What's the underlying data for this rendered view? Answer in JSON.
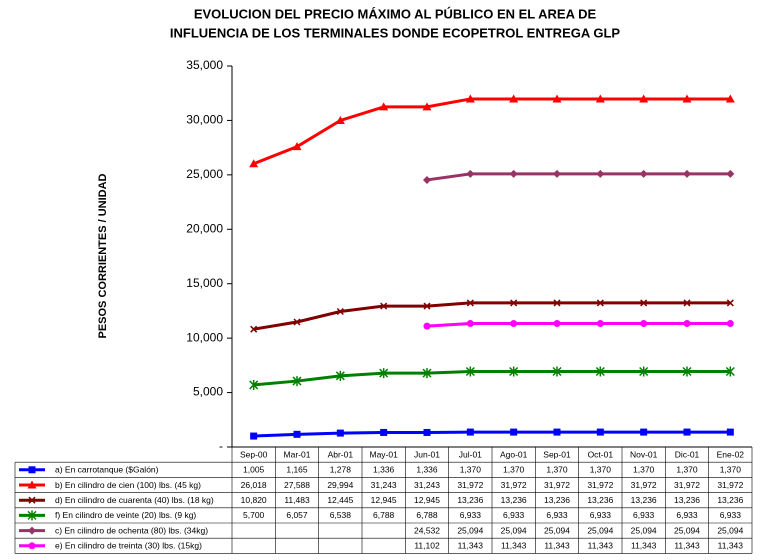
{
  "chart_data": {
    "type": "line",
    "title": [
      "EVOLUCION DEL PRECIO MÁXIMO AL PÚBLICO EN EL AREA DE",
      "INFLUENCIA DE LOS TERMINALES DONDE ECOPETROL ENTREGA GLP"
    ],
    "y_label": "PESOS CORRIENTES / UNIDAD",
    "categories": [
      "Sep-00",
      "Mar-01",
      "Abr-01",
      "May-01",
      "Jun-01",
      "Jul-01",
      "Ago-01",
      "Sep-01",
      "Oct-01",
      "Nov-01",
      "Dic-01",
      "Ene-02"
    ],
    "ylim": [
      0,
      35000
    ],
    "yticks": [
      {
        "value": 0,
        "label": "-"
      },
      {
        "value": 5000,
        "label": "5,000"
      },
      {
        "value": 10000,
        "label": "10,000"
      },
      {
        "value": 15000,
        "label": "15,000"
      },
      {
        "value": 20000,
        "label": "20,000"
      },
      {
        "value": 25000,
        "label": "25,000"
      },
      {
        "value": 30000,
        "label": "30,000"
      },
      {
        "value": 35000,
        "label": "35,000"
      }
    ],
    "grid": false,
    "series": [
      {
        "name": "a) En carrotanque ($Galón)",
        "color": "#0000ff",
        "marker": "square",
        "values": [
          1005,
          1165,
          1278,
          1336,
          1336,
          1370,
          1370,
          1370,
          1370,
          1370,
          1370,
          1370
        ],
        "value_labels": [
          "1,005",
          "1,165",
          "1,278",
          "1,336",
          "1,336",
          "1,370",
          "1,370",
          "1,370",
          "1,370",
          "1,370",
          "1,370",
          "1,370"
        ]
      },
      {
        "name": "b) En cilindro de cien (100) lbs. (45 kg)",
        "color": "#ff0000",
        "marker": "triangle",
        "values": [
          26018,
          27588,
          29994,
          31243,
          31243,
          31972,
          31972,
          31972,
          31972,
          31972,
          31972,
          31972
        ],
        "value_labels": [
          "26,018",
          "27,588",
          "29,994",
          "31,243",
          "31,243",
          "31,972",
          "31,972",
          "31,972",
          "31,972",
          "31,972",
          "31,972",
          "31,972"
        ]
      },
      {
        "name": "d) En cilindro de cuarenta (40) lbs. (18 kg)",
        "color": "#800000",
        "marker": "cross",
        "values": [
          10820,
          11483,
          12445,
          12945,
          12945,
          13236,
          13236,
          13236,
          13236,
          13236,
          13236,
          13236
        ],
        "value_labels": [
          "10,820",
          "11,483",
          "12,445",
          "12,945",
          "12,945",
          "13,236",
          "13,236",
          "13,236",
          "13,236",
          "13,236",
          "13,236",
          "13,236"
        ]
      },
      {
        "name": "f) En cilindro de veinte (20) lbs. (9 kg)",
        "color": "#008000",
        "marker": "star",
        "values": [
          5700,
          6057,
          6538,
          6788,
          6788,
          6933,
          6933,
          6933,
          6933,
          6933,
          6933,
          6933
        ],
        "value_labels": [
          "5,700",
          "6,057",
          "6,538",
          "6,788",
          "6,788",
          "6,933",
          "6,933",
          "6,933",
          "6,933",
          "6,933",
          "6,933",
          "6,933"
        ]
      },
      {
        "name": "c) En cilindro de ochenta (80) lbs. (34kg)",
        "color": "#993366",
        "marker": "diamond",
        "values": [
          null,
          null,
          null,
          null,
          24532,
          25094,
          25094,
          25094,
          25094,
          25094,
          25094,
          25094
        ],
        "value_labels": [
          null,
          null,
          null,
          null,
          "24,532",
          "25,094",
          "25,094",
          "25,094",
          "25,094",
          "25,094",
          "25,094",
          "25,094"
        ]
      },
      {
        "name": "e) En cilindro de treinta (30) lbs. (15kg)",
        "color": "#ff00ff",
        "marker": "circle",
        "values": [
          null,
          null,
          null,
          null,
          11102,
          11343,
          11343,
          11343,
          11343,
          11343,
          11343,
          11343
        ],
        "value_labels": [
          null,
          null,
          null,
          null,
          "11,102",
          "11,343",
          "11,343",
          "11,343",
          "11,343",
          "11,343",
          "11,343",
          "11,343"
        ]
      }
    ]
  }
}
